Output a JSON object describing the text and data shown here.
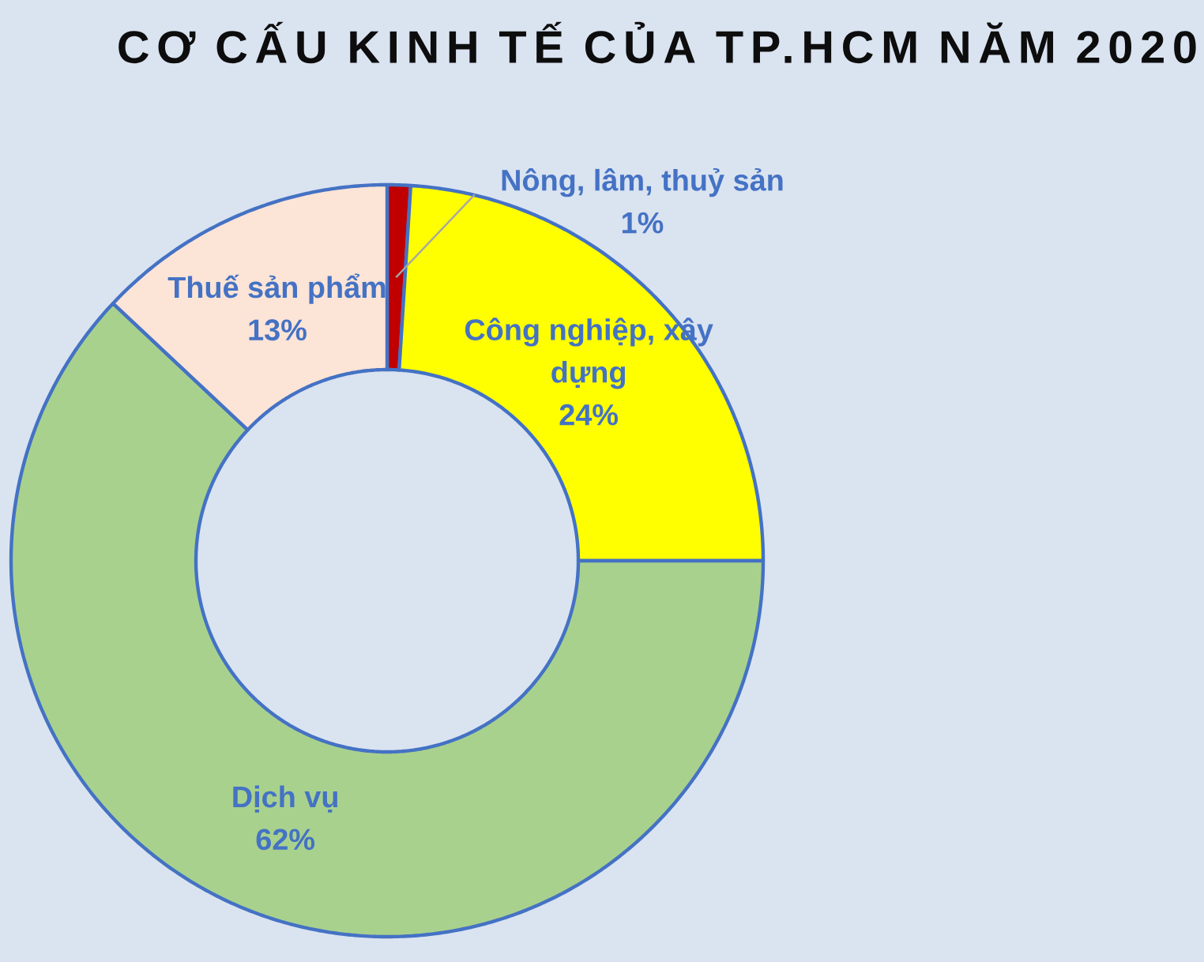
{
  "chart_data": {
    "type": "donut",
    "title": "CƠ CẤU KINH TẾ CỦA TP.HCM NĂM 2020",
    "categories": [
      "Nông, lâm, thuỷ sản",
      "Công nghiệp, xây dựng",
      "Dịch vụ",
      "Thuế sản phẩm"
    ],
    "values": [
      1,
      24,
      62,
      13
    ],
    "colors": [
      "#c00000",
      "#ffff00",
      "#a9d18e",
      "#fce4d6"
    ],
    "value_labels": [
      "1%",
      "24%",
      "62%",
      "13%"
    ]
  }
}
